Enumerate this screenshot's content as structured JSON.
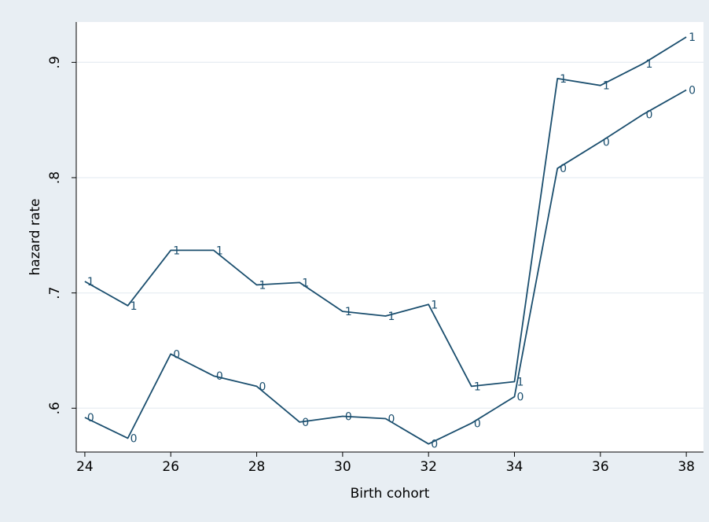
{
  "chart_data": {
    "type": "line",
    "title": "",
    "xlabel": "Birth cohort",
    "ylabel": "hazard rate",
    "xlim": [
      23.8,
      38.4
    ],
    "ylim": [
      0.562,
      0.935
    ],
    "x_ticks": [
      24,
      26,
      28,
      30,
      32,
      34,
      36,
      38
    ],
    "x_tick_labels": [
      "24",
      "26",
      "28",
      "30",
      "32",
      "34",
      "36",
      "38"
    ],
    "y_ticks": [
      0.6,
      0.7,
      0.8,
      0.9
    ],
    "y_tick_labels": [
      ".6",
      ".7",
      ".8",
      ".9"
    ],
    "grid": true,
    "legend": "none",
    "colors": {
      "outer_background": "#e8eef3",
      "plot_background": "#ffffff",
      "line": "#1a4e6e",
      "marker_label": "#1a4e6e",
      "grid": "#e8eef3",
      "axis": "#000000"
    },
    "x": [
      24,
      25,
      26,
      27,
      28,
      29,
      30,
      31,
      32,
      33,
      34,
      35,
      36,
      37,
      38
    ],
    "series": [
      {
        "marker_label": "1",
        "values": [
          0.71,
          0.689,
          0.737,
          0.737,
          0.707,
          0.709,
          0.684,
          0.68,
          0.69,
          0.619,
          0.623,
          0.886,
          0.88,
          0.899,
          0.922
        ]
      },
      {
        "marker_label": "0",
        "values": [
          0.592,
          0.574,
          0.647,
          0.628,
          0.619,
          0.588,
          0.593,
          0.591,
          0.569,
          0.587,
          0.61,
          0.808,
          0.831,
          0.855,
          0.876
        ]
      }
    ]
  }
}
